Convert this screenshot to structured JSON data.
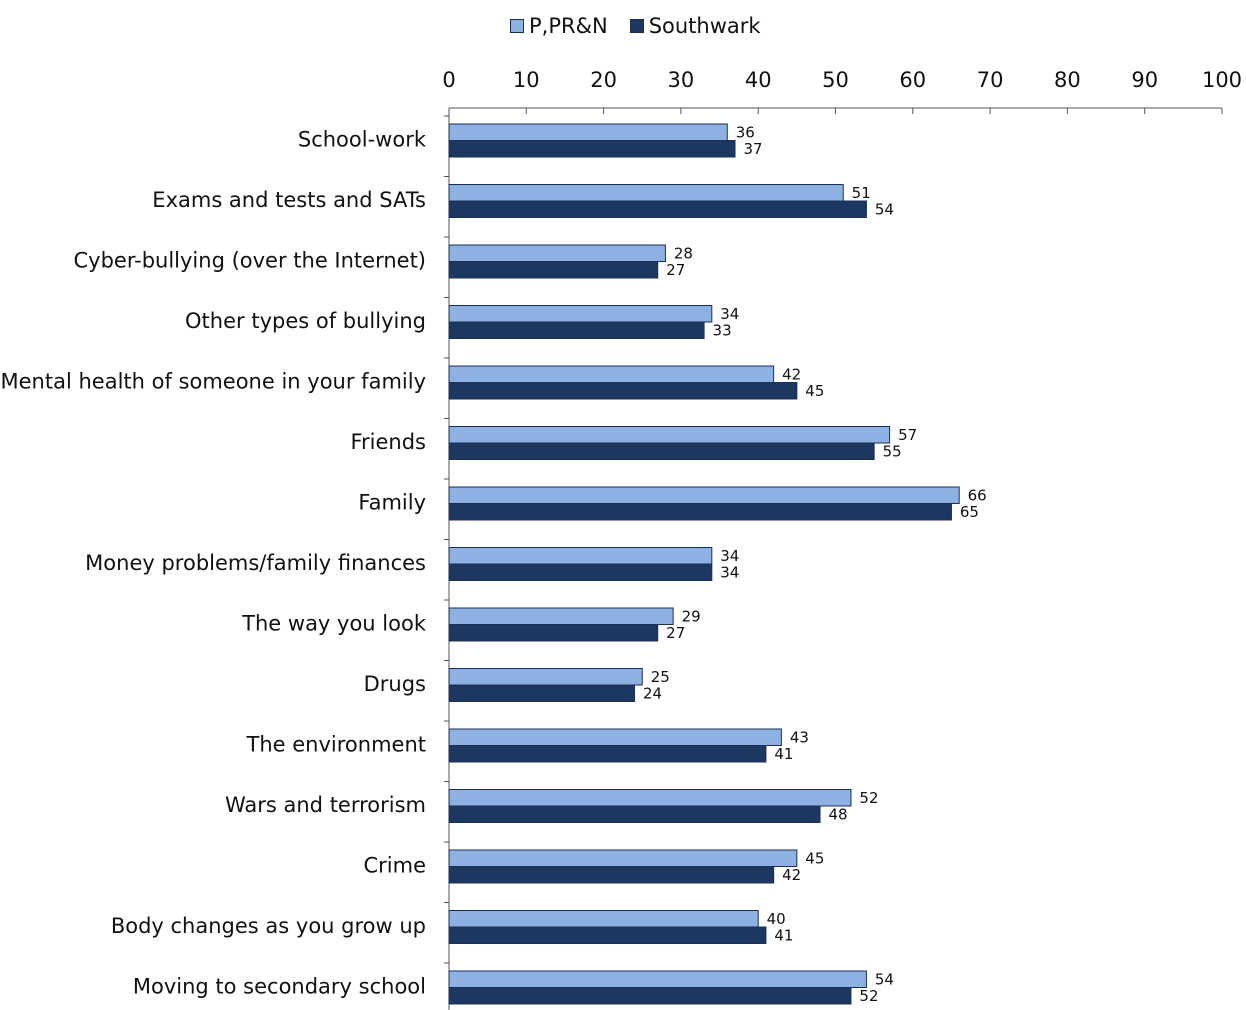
{
  "chart_data": {
    "type": "bar",
    "orientation": "horizontal",
    "title": "",
    "xlabel": "",
    "ylabel": "",
    "xlim": [
      0,
      100
    ],
    "x_ticks": [
      0,
      10,
      20,
      30,
      40,
      50,
      60,
      70,
      80,
      90,
      100
    ],
    "legend_position": "top-center",
    "grid": false,
    "data_labels": true,
    "categories": [
      "School-work",
      "Exams and tests and SATs",
      "Cyber-bullying (over the Internet)",
      "Other types of bullying",
      "Mental health of someone in your family",
      "Friends",
      "Family",
      "Money problems/family finances",
      "The way you look",
      "Drugs",
      "The environment",
      "Wars and terrorism",
      "Crime",
      "Body changes as you grow up",
      "Moving to secondary school"
    ],
    "series": [
      {
        "name": "P,PR&N",
        "color": "#8eb1e3",
        "values": [
          36,
          51,
          28,
          34,
          42,
          57,
          66,
          34,
          29,
          25,
          43,
          52,
          45,
          40,
          54
        ]
      },
      {
        "name": "Southwark",
        "color": "#1c3760",
        "values": [
          37,
          54,
          27,
          33,
          45,
          55,
          65,
          34,
          27,
          24,
          41,
          48,
          42,
          41,
          52
        ]
      }
    ]
  }
}
